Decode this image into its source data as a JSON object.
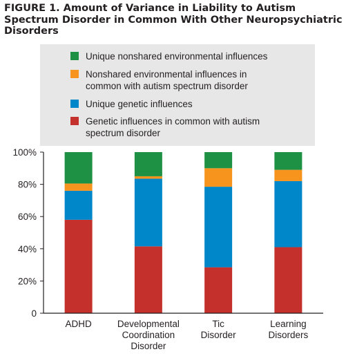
{
  "title": "FIGURE 1. Amount of Variance in Liability to Autism Spectrum Disorder in Common With Other Neuropsychiatric Disorders",
  "chart_data": {
    "type": "bar",
    "stacked": true,
    "categories": [
      [
        "ADHD"
      ],
      [
        "Developmental",
        "Coordination",
        "Disorder"
      ],
      [
        "Tic",
        "Disorder"
      ],
      [
        "Learning",
        "Disorders"
      ]
    ],
    "category_names": [
      "ADHD",
      "Developmental Coordination Disorder",
      "Tic Disorder",
      "Learning Disorders"
    ],
    "series": [
      {
        "name": "Genetic influences in common with autism spectrum disorder",
        "color": "#c4302b",
        "values": [
          58,
          41.5,
          28.5,
          41
        ]
      },
      {
        "name": "Unique genetic influences",
        "color": "#0087c9",
        "values": [
          18,
          42,
          50,
          41
        ]
      },
      {
        "name": "Nonshared environmental influences in common with autism spectrum disorder",
        "color": "#f7941d",
        "values": [
          4.5,
          1.5,
          11.5,
          7
        ]
      },
      {
        "name": "Unique nonshared environmental influences",
        "color": "#1e9144",
        "values": [
          19.5,
          15,
          10,
          11
        ]
      }
    ],
    "ylim": [
      0,
      100
    ],
    "yticks": [
      0,
      20,
      40,
      60,
      80,
      100
    ],
    "ytick_labels": [
      "0",
      "20%",
      "40%",
      "60%",
      "80%",
      "100%"
    ],
    "legend": {
      "placement": "top",
      "items": [
        {
          "lines": [
            "Unique nonshared environmental influences"
          ],
          "color": "#1e9144"
        },
        {
          "lines": [
            "Nonshared environmental influences in",
            "common with autism spectrum disorder"
          ],
          "color": "#f7941d"
        },
        {
          "lines": [
            "Unique genetic influences"
          ],
          "color": "#0087c9"
        },
        {
          "lines": [
            "Genetic influences in common with autism",
            "spectrum disorder"
          ],
          "color": "#c4302b"
        }
      ]
    },
    "grid": false
  }
}
